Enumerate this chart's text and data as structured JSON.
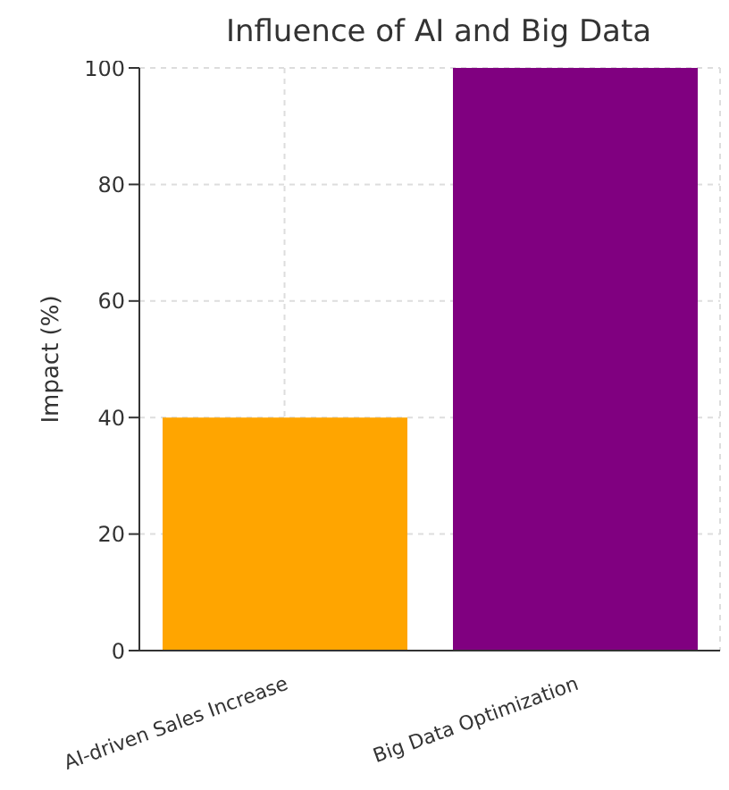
{
  "chart_data": {
    "type": "bar",
    "title": "Influence of AI and Big Data",
    "ylabel": "Impact (%)",
    "categories": [
      "AI-driven Sales Increase",
      "Big Data Optimization"
    ],
    "values": [
      40,
      100
    ],
    "colors": [
      "#ffa500",
      "#800080"
    ],
    "ylim": [
      0,
      100
    ],
    "yticks": [
      0,
      20,
      40,
      60,
      80,
      100
    ],
    "grid": true
  }
}
